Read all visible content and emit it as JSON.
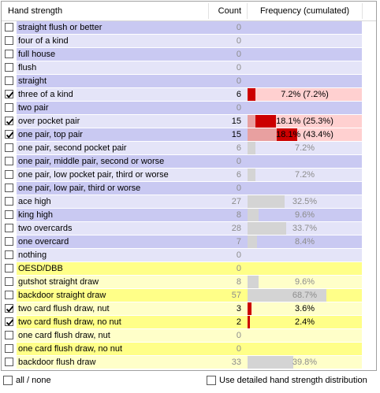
{
  "header": {
    "col_strength": "Hand strength",
    "col_count": "Count",
    "col_frequency": "Frequency (cumulated)"
  },
  "colors": {
    "row_blue": "#c9c9f2",
    "row_blue_light": "#e4e4f8",
    "row_yellow": "#ffff88",
    "row_yellow_light": "#ffffc9",
    "row_pink": "#ffd0d0",
    "bar_red": "#cc0000",
    "bar_gray": "#d4d4d4"
  },
  "rows": [
    {
      "label": "straight flush or better",
      "count": "0",
      "checked": false,
      "tone": "blue",
      "freq": ""
    },
    {
      "label": "four of a kind",
      "count": "0",
      "checked": false,
      "tone": "blue_light",
      "freq": ""
    },
    {
      "label": "full house",
      "count": "0",
      "checked": false,
      "tone": "blue",
      "freq": ""
    },
    {
      "label": "flush",
      "count": "0",
      "checked": false,
      "tone": "blue_light",
      "freq": ""
    },
    {
      "label": "straight",
      "count": "0",
      "checked": false,
      "tone": "blue",
      "freq": ""
    },
    {
      "label": "three of a kind",
      "count": "6",
      "checked": true,
      "tone": "blue_light",
      "freq": "7.2% (7.2%)",
      "pct": 7.2,
      "cum": 7.2
    },
    {
      "label": "two pair",
      "count": "0",
      "checked": false,
      "tone": "blue",
      "freq": ""
    },
    {
      "label": "over pocket pair",
      "count": "15",
      "checked": true,
      "tone": "blue_light",
      "freq": "18.1% (25.3%)",
      "pct": 18.1,
      "cum": 25.3
    },
    {
      "label": "one pair, top pair",
      "count": "15",
      "checked": true,
      "tone": "blue",
      "freq": "18.1% (43.4%)",
      "pct": 18.1,
      "cum": 43.4
    },
    {
      "label": "one pair, second pocket pair",
      "count": "6",
      "checked": false,
      "tone": "blue_light",
      "freq": "7.2%",
      "pct": 7.2
    },
    {
      "label": "one pair, middle pair, second or worse",
      "count": "0",
      "checked": false,
      "tone": "blue",
      "freq": ""
    },
    {
      "label": "one pair, low pocket pair, third or worse",
      "count": "6",
      "checked": false,
      "tone": "blue_light",
      "freq": "7.2%",
      "pct": 7.2
    },
    {
      "label": "one pair, low pair, third or worse",
      "count": "0",
      "checked": false,
      "tone": "blue",
      "freq": ""
    },
    {
      "label": "ace high",
      "count": "27",
      "checked": false,
      "tone": "blue_light",
      "freq": "32.5%",
      "pct": 32.5
    },
    {
      "label": "king high",
      "count": "8",
      "checked": false,
      "tone": "blue",
      "freq": "9.6%",
      "pct": 9.6
    },
    {
      "label": "two overcards",
      "count": "28",
      "checked": false,
      "tone": "blue_light",
      "freq": "33.7%",
      "pct": 33.7
    },
    {
      "label": "one overcard",
      "count": "7",
      "checked": false,
      "tone": "blue",
      "freq": "8.4%",
      "pct": 8.4
    },
    {
      "label": "nothing",
      "count": "0",
      "checked": false,
      "tone": "blue_light",
      "freq": ""
    },
    {
      "label": "OESD/DBB",
      "count": "0",
      "checked": false,
      "tone": "yellow",
      "freq": ""
    },
    {
      "label": "gutshot straight draw",
      "count": "8",
      "checked": false,
      "tone": "yellow_light",
      "freq": "9.6%",
      "pct": 9.6
    },
    {
      "label": "backdoor straight draw",
      "count": "57",
      "checked": false,
      "tone": "yellow",
      "freq": "68.7%",
      "pct": 68.7
    },
    {
      "label": "two card flush draw, nut",
      "count": "3",
      "checked": true,
      "tone": "yellow_light",
      "freq": "3.6%",
      "pct": 3.6
    },
    {
      "label": "two card flush draw, no nut",
      "count": "2",
      "checked": true,
      "tone": "yellow",
      "freq": "2.4%",
      "pct": 2.4
    },
    {
      "label": "one card flush draw, nut",
      "count": "0",
      "checked": false,
      "tone": "yellow_light",
      "freq": ""
    },
    {
      "label": "one card flush draw, no nut",
      "count": "0",
      "checked": false,
      "tone": "yellow",
      "freq": ""
    },
    {
      "label": "backdoor flush draw",
      "count": "33",
      "checked": false,
      "tone": "yellow_light",
      "freq": "39.8%",
      "pct": 39.8
    }
  ],
  "footer": {
    "all_none_label": "all / none",
    "detailed_label": "Use detailed hand strength distribution"
  }
}
